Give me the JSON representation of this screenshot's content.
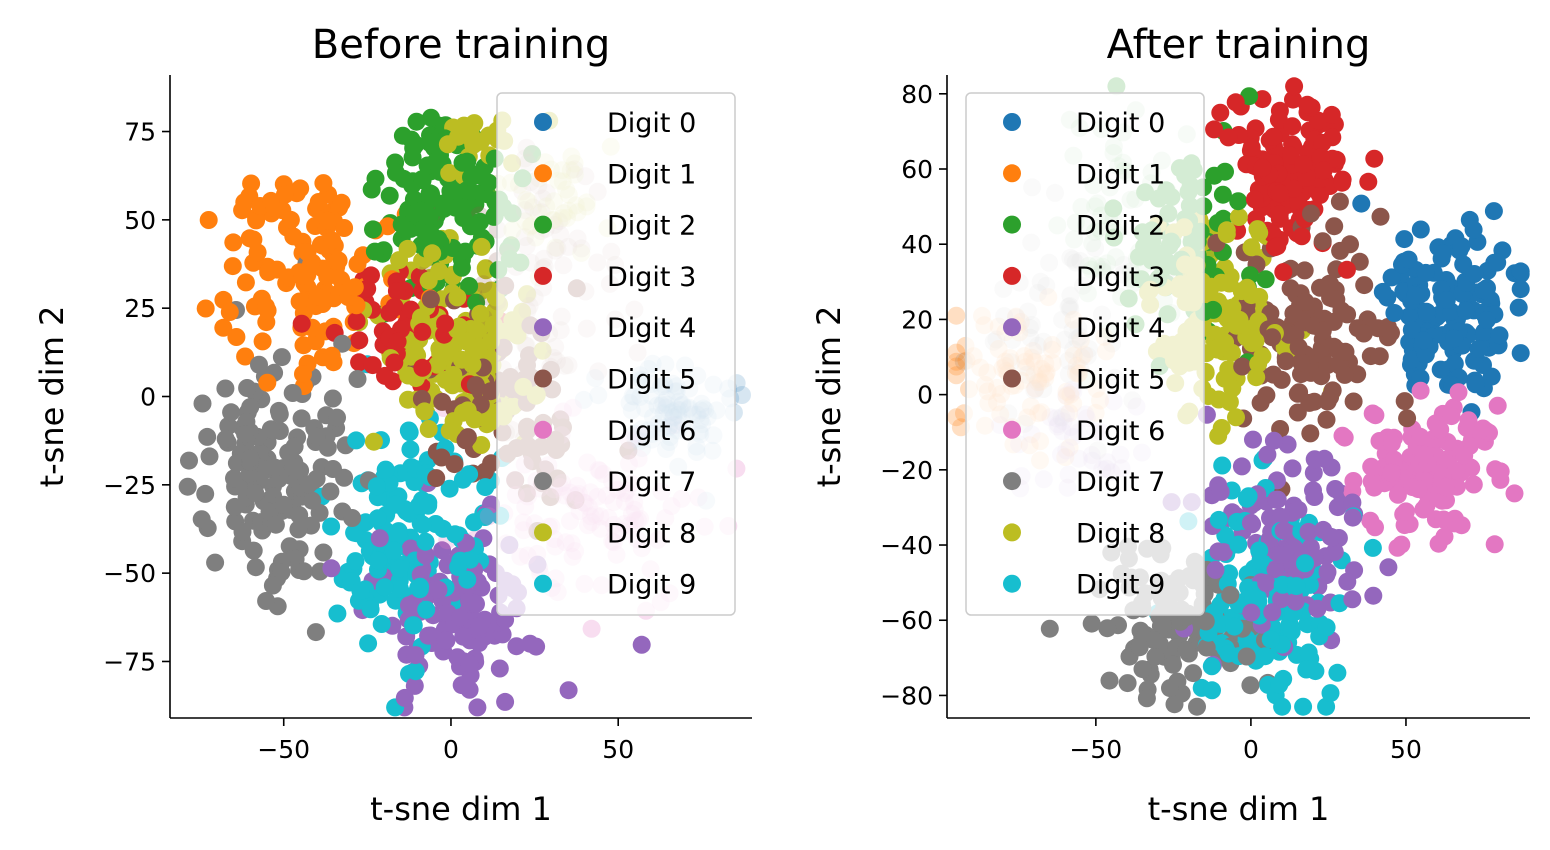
{
  "colors": [
    "#1f77b4",
    "#ff7f0e",
    "#2ca02c",
    "#d62728",
    "#9467bd",
    "#8c564b",
    "#e377c2",
    "#7f7f7f",
    "#bcbd22",
    "#17becf"
  ],
  "chart_data": [
    {
      "type": "scatter",
      "title": "Before training",
      "xlabel": "t-sne dim 1",
      "ylabel": "t-sne dim 2",
      "xlim": [
        -84,
        90
      ],
      "ylim": [
        -91,
        91
      ],
      "xticks": [
        -50,
        0,
        50
      ],
      "yticks": [
        -75,
        -50,
        -25,
        0,
        25,
        50,
        75
      ],
      "xtick_labels": [
        "−50",
        "0",
        "50"
      ],
      "ytick_labels": [
        "−75",
        "−50",
        "−25",
        "0",
        "25",
        "50",
        "75"
      ],
      "legend": "top-right",
      "grid": false,
      "series": [
        {
          "name": "Digit 0",
          "clusters": [
            {
              "cx": 66,
              "cy": -5,
              "sx": 8,
              "sy": 7,
              "n": 90,
              "opacity": 0.18
            }
          ]
        },
        {
          "name": "Digit 1",
          "clusters": [
            {
              "cx": -45,
              "cy": 35,
              "sx": 13,
              "sy": 14,
              "n": 120
            }
          ]
        },
        {
          "name": "Digit 2",
          "clusters": [
            {
              "cx": -3,
              "cy": 55,
              "sx": 10,
              "sy": 14,
              "n": 140
            }
          ]
        },
        {
          "name": "Digit 3",
          "clusters": [
            {
              "cx": -15,
              "cy": 20,
              "sx": 12,
              "sy": 8,
              "n": 60
            }
          ]
        },
        {
          "name": "Digit 4",
          "clusters": [
            {
              "cx": 0,
              "cy": -58,
              "sx": 12,
              "sy": 12,
              "n": 130
            }
          ]
        },
        {
          "name": "Digit 5",
          "clusters": [
            {
              "cx": 15,
              "cy": -3,
              "sx": 12,
              "sy": 14,
              "n": 90
            }
          ]
        },
        {
          "name": "Digit 6",
          "clusters": [
            {
              "cx": 42,
              "cy": -35,
              "sx": 14,
              "sy": 12,
              "n": 110,
              "opacity": 0.25
            }
          ]
        },
        {
          "name": "Digit 7",
          "clusters": [
            {
              "cx": -50,
              "cy": -20,
              "sx": 12,
              "sy": 17,
              "n": 140
            }
          ]
        },
        {
          "name": "Digit 8",
          "clusters": [
            {
              "cx": 0,
              "cy": 15,
              "sx": 12,
              "sy": 14,
              "n": 160
            }
          ]
        },
        {
          "name": "Digit 9",
          "clusters": [
            {
              "cx": -12,
              "cy": -40,
              "sx": 12,
              "sy": 15,
              "n": 150
            }
          ]
        }
      ],
      "extra_clusters": [
        {
          "series": 5,
          "cx": 30,
          "cy": 30,
          "sx": 12,
          "sy": 20,
          "n": 80,
          "opacity": 0.2
        },
        {
          "series": 8,
          "cx": 28,
          "cy": 55,
          "sx": 8,
          "sy": 8,
          "n": 40,
          "opacity": 0.25
        },
        {
          "series": 8,
          "cx": 10,
          "cy": 72,
          "sx": 8,
          "sy": 5,
          "n": 20
        }
      ]
    },
    {
      "type": "scatter",
      "title": "After training",
      "xlabel": "t-sne dim 1",
      "ylabel": "t-sne dim 2",
      "xlim": [
        -98,
        90
      ],
      "ylim": [
        -86,
        85
      ],
      "xticks": [
        -50,
        0,
        50
      ],
      "yticks": [
        -80,
        -60,
        -40,
        -20,
        0,
        20,
        40,
        60,
        80
      ],
      "xtick_labels": [
        "−50",
        "0",
        "50"
      ],
      "ytick_labels": [
        "−80",
        "−60",
        "−40",
        "−20",
        "0",
        "20",
        "40",
        "60",
        "80"
      ],
      "legend": "top-left",
      "grid": false,
      "series": [
        {
          "name": "Digit 0",
          "clusters": [
            {
              "cx": 65,
              "cy": 22,
              "sx": 10,
              "sy": 12,
              "n": 140
            }
          ]
        },
        {
          "name": "Digit 1",
          "clusters": [
            {
              "cx": -70,
              "cy": 5,
              "sx": 14,
              "sy": 10,
              "n": 90,
              "opacity": 0.25
            }
          ]
        },
        {
          "name": "Digit 2",
          "clusters": [
            {
              "cx": -20,
              "cy": 40,
              "sx": 10,
              "sy": 12,
              "n": 80
            }
          ]
        },
        {
          "name": "Digit 3",
          "clusters": [
            {
              "cx": 12,
              "cy": 58,
              "sx": 10,
              "sy": 10,
              "n": 130
            }
          ]
        },
        {
          "name": "Digit 4",
          "clusters": [
            {
              "cx": 10,
              "cy": -40,
              "sx": 12,
              "sy": 14,
              "n": 130
            }
          ]
        },
        {
          "name": "Digit 5",
          "clusters": [
            {
              "cx": 20,
              "cy": 15,
              "sx": 12,
              "sy": 14,
              "n": 130
            }
          ]
        },
        {
          "name": "Digit 6",
          "clusters": [
            {
              "cx": 60,
              "cy": -20,
              "sx": 12,
              "sy": 8,
              "n": 140
            }
          ]
        },
        {
          "name": "Digit 7",
          "clusters": [
            {
              "cx": -25,
              "cy": -60,
              "sx": 12,
              "sy": 10,
              "n": 120
            }
          ]
        },
        {
          "name": "Digit 8",
          "clusters": [
            {
              "cx": -10,
              "cy": 20,
              "sx": 10,
              "sy": 14,
              "n": 140
            }
          ]
        },
        {
          "name": "Digit 9",
          "clusters": [
            {
              "cx": 5,
              "cy": -55,
              "sx": 12,
              "sy": 14,
              "n": 160
            }
          ]
        }
      ],
      "extra_clusters": [
        {
          "series": 7,
          "cx": -60,
          "cy": 15,
          "sx": 12,
          "sy": 14,
          "n": 60,
          "opacity": 0.2
        },
        {
          "series": 2,
          "cx": -45,
          "cy": 45,
          "sx": 10,
          "sy": 14,
          "n": 60,
          "opacity": 0.2
        },
        {
          "series": 4,
          "cx": -55,
          "cy": -10,
          "sx": 12,
          "sy": 8,
          "n": 40,
          "opacity": 0.2
        }
      ]
    }
  ]
}
